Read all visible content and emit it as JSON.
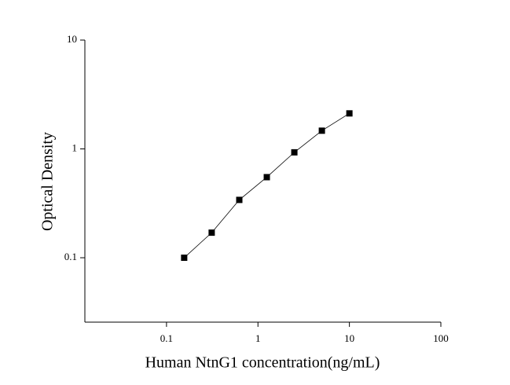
{
  "chart_data": {
    "type": "line",
    "x_label": "Human NtnG1 concentration(ng/mL)",
    "y_label": "Optical Density",
    "x": [
      0.156,
      0.312,
      0.625,
      1.25,
      2.5,
      5,
      10
    ],
    "series": [
      {
        "color": "#000000",
        "values": [
          0.1,
          0.17,
          0.34,
          0.55,
          0.93,
          1.47,
          2.12
        ]
      }
    ],
    "xlim": [
      0.0128,
      100
    ],
    "ylim": [
      0.0256,
      10
    ],
    "xticks": [
      0.1,
      1,
      10,
      100
    ],
    "yticks": [
      0.1,
      1,
      10
    ],
    "xscale": "log",
    "yscale": "log",
    "grid": false,
    "markers": "square"
  }
}
